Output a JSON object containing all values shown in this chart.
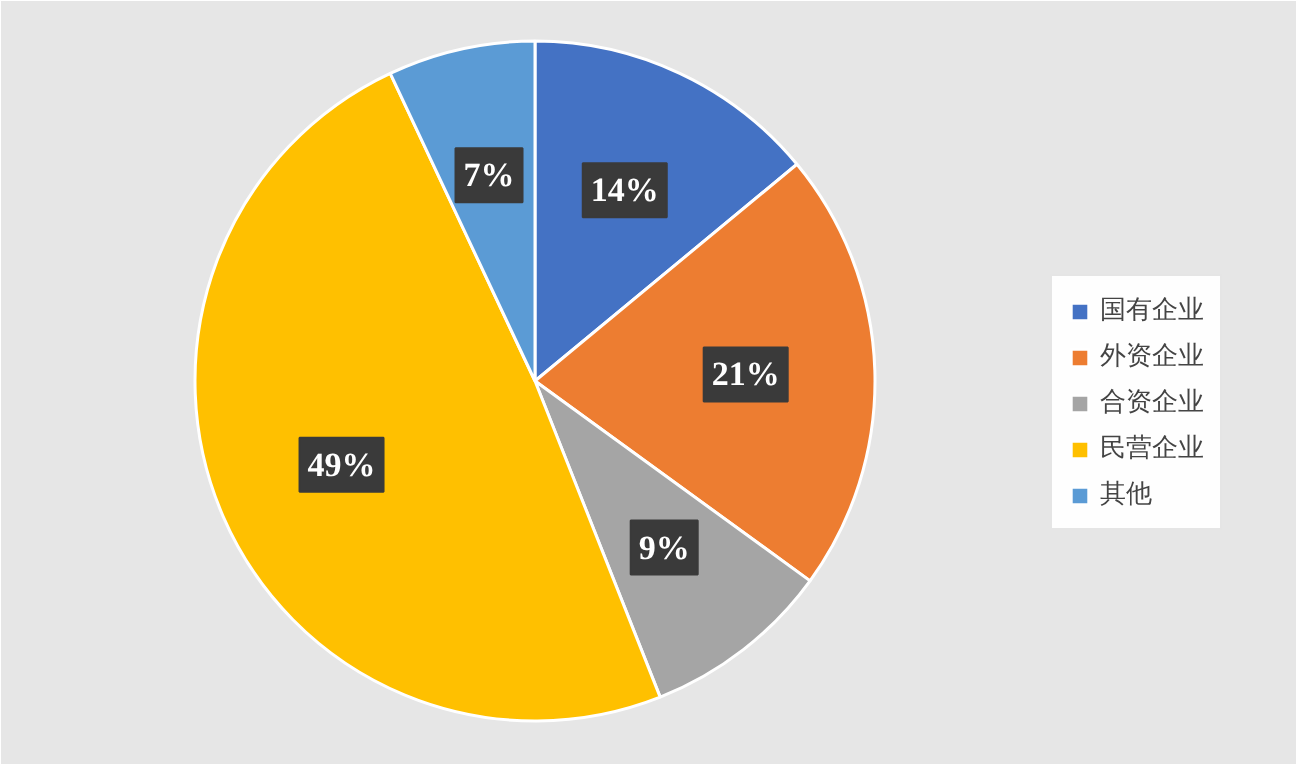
{
  "chart_data": {
    "type": "pie",
    "categories": [
      "国有企业",
      "外资企业",
      "合资企业",
      "民营企业",
      "其他"
    ],
    "values": [
      14,
      21,
      9,
      49,
      7
    ],
    "colors": [
      "#4472c4",
      "#ed7d31",
      "#a5a5a5",
      "#ffc000",
      "#5b9bd5"
    ],
    "value_labels": [
      "14%",
      "21%",
      "9%",
      "49%",
      "7%"
    ],
    "legend": "right"
  }
}
